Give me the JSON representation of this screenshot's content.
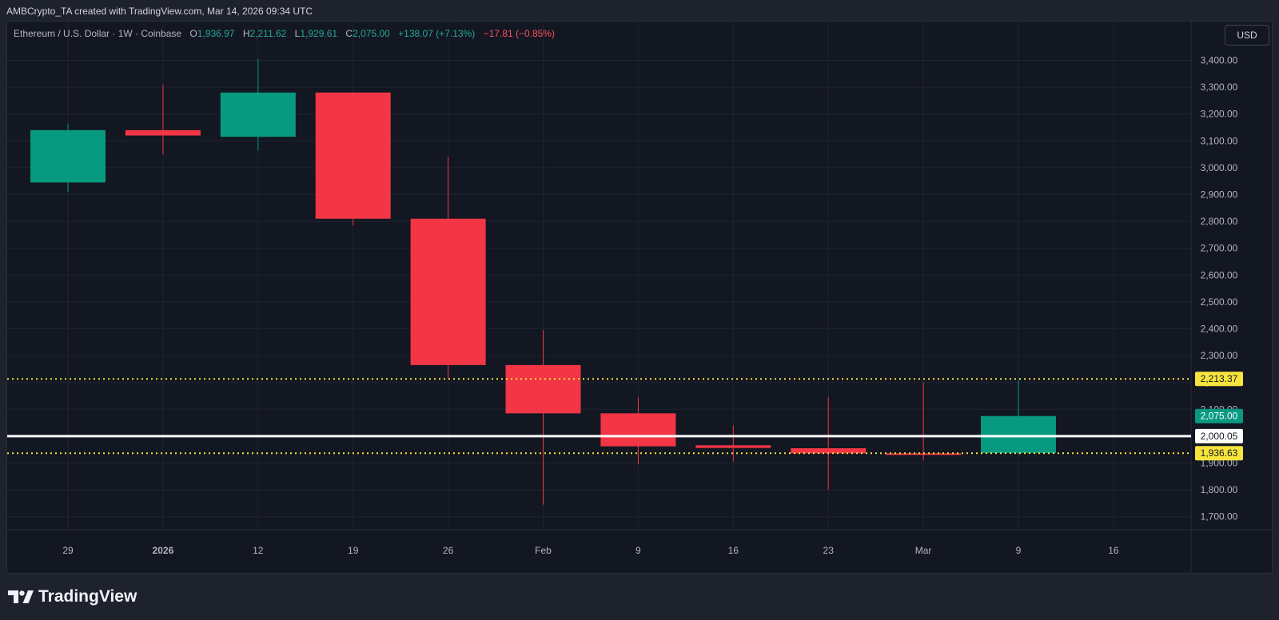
{
  "header": {
    "credit": "AMBCrypto_TA created with TradingView.com, Mar 14, 2026 09:34 UTC"
  },
  "legend": {
    "symbol": "Ethereum / U.S. Dollar · 1W · Coinbase",
    "open_label": "O",
    "open_value": "1,936.97",
    "high_label": "H",
    "high_value": "2,211.62",
    "low_label": "L",
    "low_value": "1,929.61",
    "close_label": "C",
    "close_value": "2,075.00",
    "change": "+138.07 (+7.13%)",
    "secondary_change": "−17.81 (−0.85%)"
  },
  "currency_button": "USD",
  "brand": {
    "name": "TradingView",
    "logo_icon": "tradingview-logo-icon"
  },
  "colors": {
    "background": "#131722",
    "up": "#089981",
    "down": "#f23645",
    "grid": "#1f2431",
    "level_line": "#f7e43c",
    "support_line": "#ffffff",
    "axis_text": "#b2b5be"
  },
  "chart_data": {
    "type": "candlestick",
    "title": "Ethereum / U.S. Dollar · 1W · Coinbase",
    "interval": "1W",
    "x_tick_labels": [
      "29",
      "2026",
      "12",
      "19",
      "26",
      "Feb",
      "9",
      "16",
      "23",
      "Mar",
      "9",
      "16"
    ],
    "x_tick_bold": [
      "2026"
    ],
    "ylim": [
      1620,
      3460
    ],
    "y_ticks": [
      1700,
      1800,
      1900,
      2000,
      2100,
      2200,
      2300,
      2400,
      2500,
      2600,
      2700,
      2800,
      2900,
      3000,
      3100,
      3200,
      3300,
      3400
    ],
    "y_tick_labels": [
      "1,700.00",
      "1,800.00",
      "1,900.00",
      "2,000.00",
      "2,100.00",
      "2,200.00",
      "2,300.00",
      "2,400.00",
      "2,500.00",
      "2,600.00",
      "2,700.00",
      "2,800.00",
      "2,900.00",
      "3,000.00",
      "3,100.00",
      "3,200.00",
      "3,300.00",
      "3,400.00"
    ],
    "grid": true,
    "candles": [
      {
        "date": "2025-12-29",
        "open": 2945,
        "high": 3165,
        "low": 2910,
        "close": 3140
      },
      {
        "date": "2026-01-05",
        "open": 3140,
        "high": 3310,
        "low": 3050,
        "close": 3120
      },
      {
        "date": "2026-01-12",
        "open": 3115,
        "high": 3405,
        "low": 3065,
        "close": 3280
      },
      {
        "date": "2026-01-19",
        "open": 3280,
        "high": 3280,
        "low": 2785,
        "close": 2810
      },
      {
        "date": "2026-01-26",
        "open": 2810,
        "high": 3040,
        "low": 2215,
        "close": 2265
      },
      {
        "date": "2026-02-02",
        "open": 2265,
        "high": 2395,
        "low": 1745,
        "close": 2085
      },
      {
        "date": "2026-02-09",
        "open": 2085,
        "high": 2145,
        "low": 1895,
        "close": 1962
      },
      {
        "date": "2026-02-16",
        "open": 1966,
        "high": 2040,
        "low": 1905,
        "close": 1956
      },
      {
        "date": "2026-02-23",
        "open": 1955,
        "high": 2145,
        "low": 1800,
        "close": 1936
      },
      {
        "date": "2026-03-02",
        "open": 1936,
        "high": 2200,
        "low": 1910,
        "close": 1933
      },
      {
        "date": "2026-03-09",
        "open": 1936.97,
        "high": 2211.62,
        "low": 1929.61,
        "close": 2075.0
      }
    ],
    "horizontal_lines": [
      {
        "value": 2213.37,
        "label": "2,213.37",
        "style": "dotted",
        "color": "#f7e43c"
      },
      {
        "value": 1936.63,
        "label": "1,936.63",
        "style": "dotted",
        "color": "#f7e43c"
      },
      {
        "value": 2000.05,
        "label": "2,000.05",
        "style": "solid",
        "color": "#ffffff"
      }
    ],
    "last_price": {
      "value": 2075.0,
      "label": "2,075.00",
      "color": "#089981"
    }
  }
}
